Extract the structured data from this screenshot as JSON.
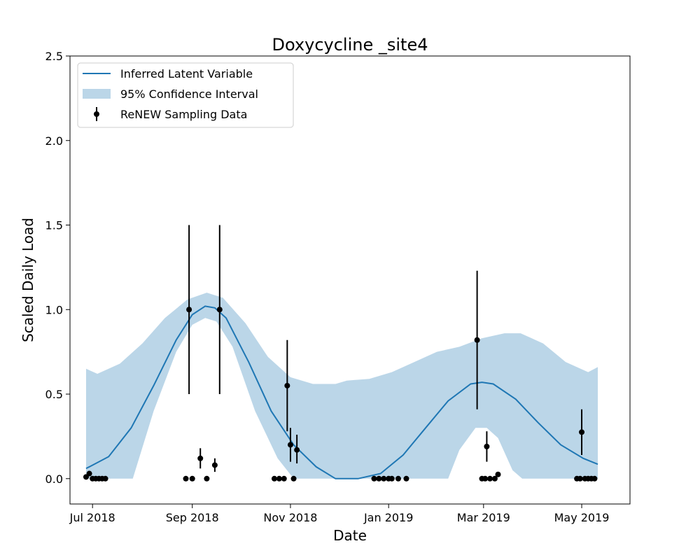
{
  "chart_data": {
    "type": "line",
    "title": "Doxycycline _site4",
    "xlabel": "Date",
    "ylabel": "Scaled Daily Load",
    "ylim": [
      -0.15,
      2.5
    ],
    "xlim": [
      "2018-06-17",
      "2019-05-31"
    ],
    "grid": false,
    "legend_position": "top-left",
    "x_ticks": [
      {
        "date": "2018-07-01",
        "label": "Jul 2018"
      },
      {
        "date": "2018-09-01",
        "label": "Sep 2018"
      },
      {
        "date": "2018-11-01",
        "label": "Nov 2018"
      },
      {
        "date": "2019-01-01",
        "label": "Jan 2019"
      },
      {
        "date": "2019-03-01",
        "label": "Mar 2019"
      },
      {
        "date": "2019-05-01",
        "label": "May 2019"
      }
    ],
    "y_ticks": [
      {
        "value": 0.0,
        "label": "0.0"
      },
      {
        "value": 0.5,
        "label": "0.5"
      },
      {
        "value": 1.0,
        "label": "1.0"
      },
      {
        "value": 1.5,
        "label": "1.5"
      },
      {
        "value": 2.0,
        "label": "2.0"
      },
      {
        "value": 2.5,
        "label": "2.5"
      }
    ],
    "series": [
      {
        "name": "Inferred Latent Variable",
        "kind": "line",
        "color": "#1f77b4",
        "points": [
          {
            "x": "2018-06-27",
            "y": 0.06
          },
          {
            "x": "2018-07-11",
            "y": 0.13
          },
          {
            "x": "2018-07-25",
            "y": 0.3
          },
          {
            "x": "2018-08-08",
            "y": 0.55
          },
          {
            "x": "2018-08-22",
            "y": 0.82
          },
          {
            "x": "2018-09-01",
            "y": 0.97
          },
          {
            "x": "2018-09-09",
            "y": 1.02
          },
          {
            "x": "2018-09-15",
            "y": 1.01
          },
          {
            "x": "2018-09-22",
            "y": 0.95
          },
          {
            "x": "2018-10-06",
            "y": 0.69
          },
          {
            "x": "2018-10-20",
            "y": 0.4
          },
          {
            "x": "2018-11-03",
            "y": 0.2
          },
          {
            "x": "2018-11-17",
            "y": 0.07
          },
          {
            "x": "2018-11-29",
            "y": 0.0
          },
          {
            "x": "2018-12-13",
            "y": 0.0
          },
          {
            "x": "2018-12-27",
            "y": 0.03
          },
          {
            "x": "2019-01-10",
            "y": 0.14
          },
          {
            "x": "2019-01-24",
            "y": 0.3
          },
          {
            "x": "2019-02-07",
            "y": 0.46
          },
          {
            "x": "2019-02-21",
            "y": 0.56
          },
          {
            "x": "2019-02-28",
            "y": 0.57
          },
          {
            "x": "2019-03-07",
            "y": 0.56
          },
          {
            "x": "2019-03-21",
            "y": 0.47
          },
          {
            "x": "2019-04-04",
            "y": 0.33
          },
          {
            "x": "2019-04-18",
            "y": 0.2
          },
          {
            "x": "2019-05-02",
            "y": 0.12
          },
          {
            "x": "2019-05-11",
            "y": 0.085
          }
        ]
      },
      {
        "name": "95% Confidence Interval",
        "kind": "band",
        "color": "#1f77b4",
        "opacity": 0.3,
        "upper": [
          {
            "x": "2018-06-27",
            "y": 0.65
          },
          {
            "x": "2018-07-04",
            "y": 0.62
          },
          {
            "x": "2018-07-18",
            "y": 0.68
          },
          {
            "x": "2018-08-01",
            "y": 0.8
          },
          {
            "x": "2018-08-15",
            "y": 0.95
          },
          {
            "x": "2018-08-29",
            "y": 1.06
          },
          {
            "x": "2018-09-10",
            "y": 1.1
          },
          {
            "x": "2018-09-20",
            "y": 1.07
          },
          {
            "x": "2018-10-04",
            "y": 0.92
          },
          {
            "x": "2018-10-18",
            "y": 0.72
          },
          {
            "x": "2018-11-01",
            "y": 0.6
          },
          {
            "x": "2018-11-15",
            "y": 0.56
          },
          {
            "x": "2018-11-29",
            "y": 0.56
          },
          {
            "x": "2018-12-06",
            "y": 0.58
          },
          {
            "x": "2018-12-20",
            "y": 0.59
          },
          {
            "x": "2019-01-03",
            "y": 0.63
          },
          {
            "x": "2019-01-17",
            "y": 0.69
          },
          {
            "x": "2019-01-31",
            "y": 0.75
          },
          {
            "x": "2019-02-14",
            "y": 0.78
          },
          {
            "x": "2019-02-28",
            "y": 0.83
          },
          {
            "x": "2019-03-14",
            "y": 0.86
          },
          {
            "x": "2019-03-24",
            "y": 0.86
          },
          {
            "x": "2019-04-07",
            "y": 0.8
          },
          {
            "x": "2019-04-21",
            "y": 0.69
          },
          {
            "x": "2019-05-05",
            "y": 0.63
          },
          {
            "x": "2019-05-11",
            "y": 0.66
          }
        ],
        "lower": [
          {
            "x": "2018-06-27",
            "y": 0.0
          },
          {
            "x": "2018-07-26",
            "y": 0.0
          },
          {
            "x": "2018-08-08",
            "y": 0.4
          },
          {
            "x": "2018-08-22",
            "y": 0.75
          },
          {
            "x": "2018-09-01",
            "y": 0.91
          },
          {
            "x": "2018-09-09",
            "y": 0.95
          },
          {
            "x": "2018-09-16",
            "y": 0.93
          },
          {
            "x": "2018-09-26",
            "y": 0.78
          },
          {
            "x": "2018-10-10",
            "y": 0.4
          },
          {
            "x": "2018-10-24",
            "y": 0.12
          },
          {
            "x": "2018-11-03",
            "y": 0.0
          },
          {
            "x": "2019-02-07",
            "y": 0.0
          },
          {
            "x": "2019-02-14",
            "y": 0.17
          },
          {
            "x": "2019-02-24",
            "y": 0.3
          },
          {
            "x": "2019-03-03",
            "y": 0.3
          },
          {
            "x": "2019-03-10",
            "y": 0.24
          },
          {
            "x": "2019-03-19",
            "y": 0.05
          },
          {
            "x": "2019-03-25",
            "y": 0.0
          },
          {
            "x": "2019-05-11",
            "y": 0.0
          }
        ]
      },
      {
        "name": "ReNEW Sampling Data",
        "kind": "errorbar",
        "color": "#000000",
        "points": [
          {
            "x": "2018-06-27",
            "y": 0.01
          },
          {
            "x": "2018-06-29",
            "y": 0.03
          },
          {
            "x": "2018-07-01",
            "y": 0.0
          },
          {
            "x": "2018-07-03",
            "y": 0.0
          },
          {
            "x": "2018-07-05",
            "y": 0.0
          },
          {
            "x": "2018-07-07",
            "y": 0.0
          },
          {
            "x": "2018-07-09",
            "y": 0.0
          },
          {
            "x": "2018-08-28",
            "y": 0.0
          },
          {
            "x": "2018-08-30",
            "y": 1.0,
            "err_low": 0.5,
            "err_high": 1.5
          },
          {
            "x": "2018-09-01",
            "y": 0.0
          },
          {
            "x": "2018-09-06",
            "y": 0.12,
            "err_low": 0.06,
            "err_high": 0.18
          },
          {
            "x": "2018-09-10",
            "y": 0.0
          },
          {
            "x": "2018-09-15",
            "y": 0.08,
            "err_low": 0.04,
            "err_high": 0.12
          },
          {
            "x": "2018-09-18",
            "y": 1.0,
            "err_low": 0.5,
            "err_high": 1.5
          },
          {
            "x": "2018-10-22",
            "y": 0.0
          },
          {
            "x": "2018-10-25",
            "y": 0.0
          },
          {
            "x": "2018-10-28",
            "y": 0.0
          },
          {
            "x": "2018-10-30",
            "y": 0.55,
            "err_low": 0.28,
            "err_high": 0.82
          },
          {
            "x": "2018-11-01",
            "y": 0.2,
            "err_low": 0.1,
            "err_high": 0.3
          },
          {
            "x": "2018-11-03",
            "y": 0.0
          },
          {
            "x": "2018-11-05",
            "y": 0.17,
            "err_low": 0.09,
            "err_high": 0.26
          },
          {
            "x": "2018-12-23",
            "y": 0.0
          },
          {
            "x": "2018-12-26",
            "y": 0.0
          },
          {
            "x": "2018-12-29",
            "y": 0.0
          },
          {
            "x": "2019-01-01",
            "y": 0.0
          },
          {
            "x": "2019-01-03",
            "y": 0.0
          },
          {
            "x": "2019-01-07",
            "y": 0.0
          },
          {
            "x": "2019-01-12",
            "y": 0.0
          },
          {
            "x": "2019-02-25",
            "y": 0.82,
            "err_low": 0.41,
            "err_high": 1.23
          },
          {
            "x": "2019-02-28",
            "y": 0.0
          },
          {
            "x": "2019-03-02",
            "y": 0.0
          },
          {
            "x": "2019-03-03",
            "y": 0.19,
            "err_low": 0.1,
            "err_high": 0.28
          },
          {
            "x": "2019-03-05",
            "y": 0.0
          },
          {
            "x": "2019-03-08",
            "y": 0.0
          },
          {
            "x": "2019-03-10",
            "y": 0.025
          },
          {
            "x": "2019-04-28",
            "y": 0.0
          },
          {
            "x": "2019-04-30",
            "y": 0.0
          },
          {
            "x": "2019-05-01",
            "y": 0.275,
            "err_low": 0.14,
            "err_high": 0.41
          },
          {
            "x": "2019-05-03",
            "y": 0.0
          },
          {
            "x": "2019-05-05",
            "y": 0.0
          },
          {
            "x": "2019-05-07",
            "y": 0.0
          },
          {
            "x": "2019-05-09",
            "y": 0.0
          }
        ]
      }
    ]
  }
}
